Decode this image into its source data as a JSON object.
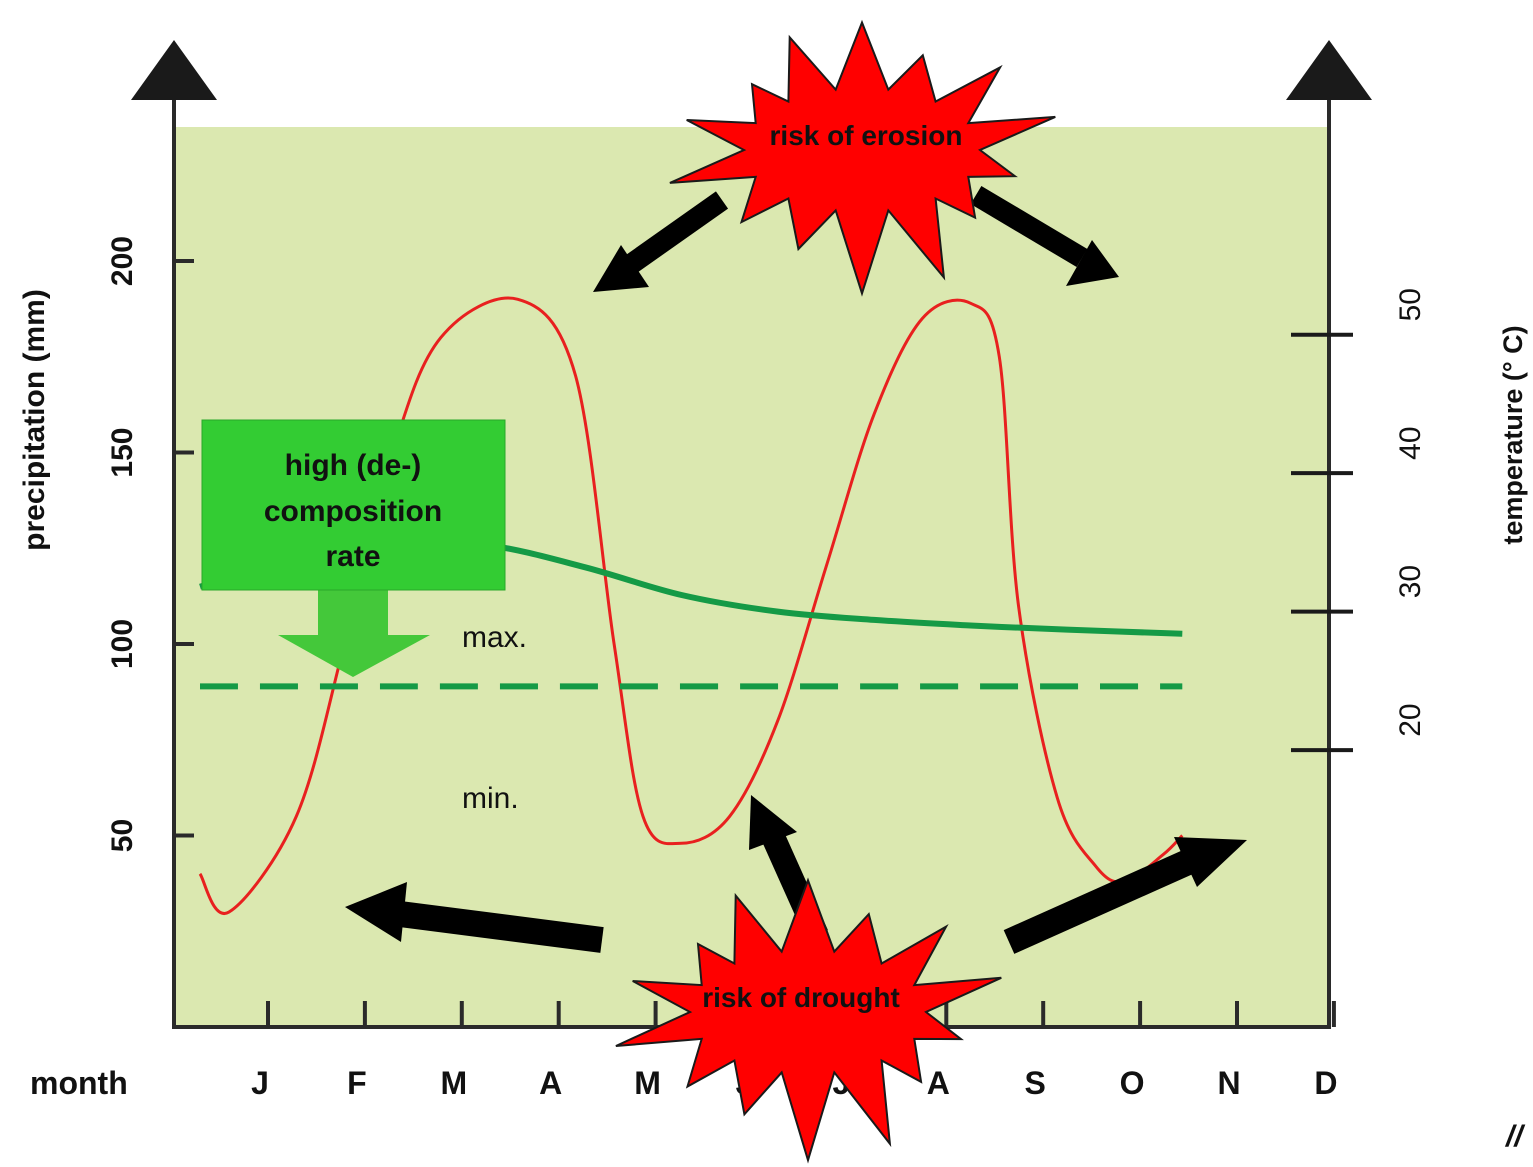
{
  "chart_data": {
    "type": "line",
    "title": "",
    "xlabel": "month",
    "ylabel_left": "precipitation (mm)",
    "ylabel_right": "temperature (° C)",
    "categories": [
      "J",
      "F",
      "M",
      "A",
      "M",
      "J",
      "J",
      "A",
      "S",
      "O",
      "N",
      "D"
    ],
    "left_axis": {
      "ylim": [
        0,
        235
      ],
      "ticks": [
        50,
        100,
        150,
        200
      ]
    },
    "right_axis": {
      "ylim": [
        0,
        65
      ],
      "ticks": [
        20,
        30,
        40,
        50
      ]
    },
    "series": [
      {
        "axis": "left",
        "color": "#e8201f",
        "style": "solid",
        "points": [
          [
            0.0,
            40
          ],
          [
            0.3,
            30
          ],
          [
            1.0,
            55
          ],
          [
            1.5,
            100
          ],
          [
            2.0,
            150
          ],
          [
            2.5,
            180
          ],
          [
            3.3,
            190
          ],
          [
            3.9,
            170
          ],
          [
            4.3,
            100
          ],
          [
            4.6,
            55
          ],
          [
            5.0,
            48
          ],
          [
            5.5,
            55
          ],
          [
            6.0,
            80
          ],
          [
            6.5,
            120
          ],
          [
            7.0,
            160
          ],
          [
            7.5,
            185
          ],
          [
            8.0,
            189
          ],
          [
            8.3,
            175
          ],
          [
            8.5,
            110
          ],
          [
            8.9,
            60
          ],
          [
            9.3,
            42
          ],
          [
            9.6,
            38
          ],
          [
            10.0,
            45
          ],
          [
            10.2,
            50
          ]
        ]
      },
      {
        "axis": "right",
        "color": "#159a46",
        "style": "solid",
        "points": [
          [
            0.0,
            31.8
          ],
          [
            1.0,
            34.0
          ],
          [
            2.0,
            35.2
          ],
          [
            3.0,
            34.8
          ],
          [
            4.0,
            33.2
          ],
          [
            5.0,
            31.2
          ],
          [
            6.0,
            30.0
          ],
          [
            7.0,
            29.4
          ],
          [
            8.0,
            29.0
          ],
          [
            9.0,
            28.7
          ],
          [
            10.2,
            28.4
          ]
        ]
      },
      {
        "axis": "right",
        "color": "#159a46",
        "style": "dashed",
        "points": [
          [
            0.0,
            24.6
          ],
          [
            10.2,
            24.6
          ]
        ]
      }
    ],
    "annotations": {
      "max": "max.",
      "min": "min.",
      "composition": [
        "high (de-)",
        "composition",
        "rate"
      ],
      "erosion": "risk of erosion",
      "drought": "risk of drought",
      "corner": "//"
    },
    "colors": {
      "background": "#dbe8b0",
      "burst": "#ff0000",
      "box": "#33cc33",
      "arrow": "#000000"
    }
  }
}
